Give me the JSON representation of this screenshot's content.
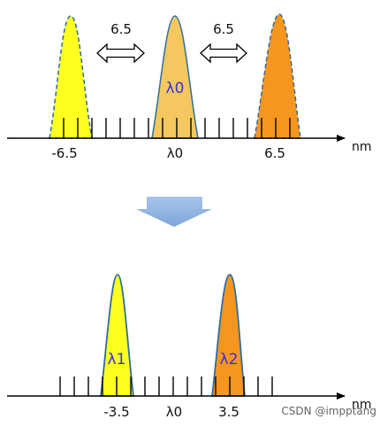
{
  "colors": {
    "yellow": "#ffff20",
    "light_orange": "#f4c85e",
    "orange": "#f7961e",
    "outline": "#2e6e9e",
    "peak_label": "#3a32d8",
    "axis": "#000000",
    "down_arrow": "#8fb4e3"
  },
  "top": {
    "spacing_left": "6.5",
    "spacing_right": "6.5",
    "center_peak_label": "λ0",
    "unit": "nm",
    "ticks": [
      "-6.5",
      "λ0",
      "6.5"
    ]
  },
  "bottom": {
    "peak1_label": "λ1",
    "peak2_label": "λ2",
    "unit": "nm",
    "ticks": [
      "-3.5",
      "λ0",
      "3.5"
    ]
  },
  "watermark": "CSDN @impptang"
}
